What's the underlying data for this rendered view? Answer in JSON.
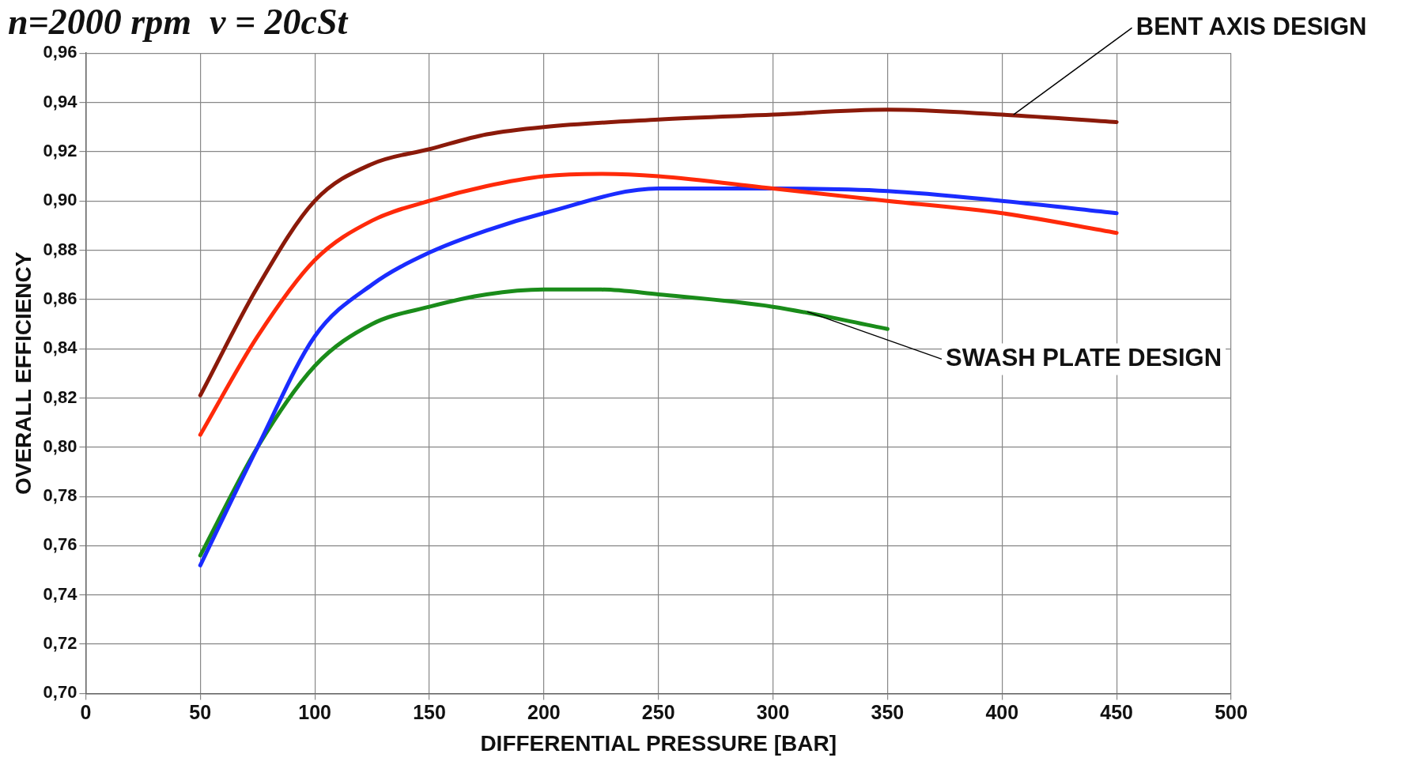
{
  "chart_data": {
    "type": "line",
    "title": "n=2000 rpm  ν = 20cSt",
    "xlabel": "DIFFERENTIAL PRESSURE [BAR]",
    "ylabel": "OVERALL EFFICIENCY",
    "series": [
      {
        "color": "#8b1a0a",
        "x": [
          50,
          75,
          100,
          125,
          150,
          175,
          200,
          250,
          300,
          350,
          400,
          450
        ],
        "values": [
          0.821,
          0.865,
          0.9,
          0.915,
          0.921,
          0.927,
          0.93,
          0.933,
          0.935,
          0.937,
          0.935,
          0.932
        ]
      },
      {
        "color": "#ff2a0a",
        "x": [
          50,
          75,
          100,
          125,
          150,
          175,
          200,
          225,
          250,
          300,
          350,
          400,
          450
        ],
        "values": [
          0.805,
          0.845,
          0.876,
          0.892,
          0.9,
          0.906,
          0.91,
          0.911,
          0.91,
          0.905,
          0.9,
          0.895,
          0.887
        ]
      },
      {
        "color": "#1a2cff",
        "x": [
          50,
          75,
          100,
          125,
          150,
          175,
          200,
          250,
          300,
          350,
          400,
          450
        ],
        "values": [
          0.752,
          0.8,
          0.845,
          0.866,
          0.879,
          0.888,
          0.895,
          0.905,
          0.905,
          0.904,
          0.9,
          0.895
        ]
      },
      {
        "color": "#1a8c1a",
        "x": [
          50,
          75,
          100,
          125,
          150,
          175,
          200,
          225,
          250,
          300,
          350
        ],
        "values": [
          0.756,
          0.8,
          0.833,
          0.85,
          0.857,
          0.862,
          0.864,
          0.864,
          0.862,
          0.857,
          0.848
        ]
      }
    ],
    "xlim": [
      0,
      500
    ],
    "xticks": [
      0,
      50,
      100,
      150,
      200,
      250,
      300,
      350,
      400,
      450,
      500
    ],
    "ylim": [
      0.7,
      0.96
    ],
    "yticks": [
      {
        "value": 0.7,
        "label": "0,70"
      },
      {
        "value": 0.72,
        "label": "0,72"
      },
      {
        "value": 0.74,
        "label": "0,74"
      },
      {
        "value": 0.76,
        "label": "0,76"
      },
      {
        "value": 0.78,
        "label": "0,78"
      },
      {
        "value": 0.8,
        "label": "0,80"
      },
      {
        "value": 0.82,
        "label": "0,82"
      },
      {
        "value": 0.84,
        "label": "0,84"
      },
      {
        "value": 0.86,
        "label": "0,86"
      },
      {
        "value": 0.88,
        "label": "0,88"
      },
      {
        "value": 0.9,
        "label": "0,90"
      },
      {
        "value": 0.92,
        "label": "0,92"
      },
      {
        "value": 0.94,
        "label": "0,94"
      },
      {
        "value": 0.96,
        "label": "0,96"
      }
    ],
    "grid": true,
    "legend": false,
    "marker": "none",
    "line_style": "solid",
    "annotations": [
      {
        "text": "BENT AXIS DESIGN",
        "x": 405,
        "y": 0.935
      },
      {
        "text": "SWASH PLATE DESIGN",
        "x": 315,
        "y": 0.855
      }
    ]
  }
}
